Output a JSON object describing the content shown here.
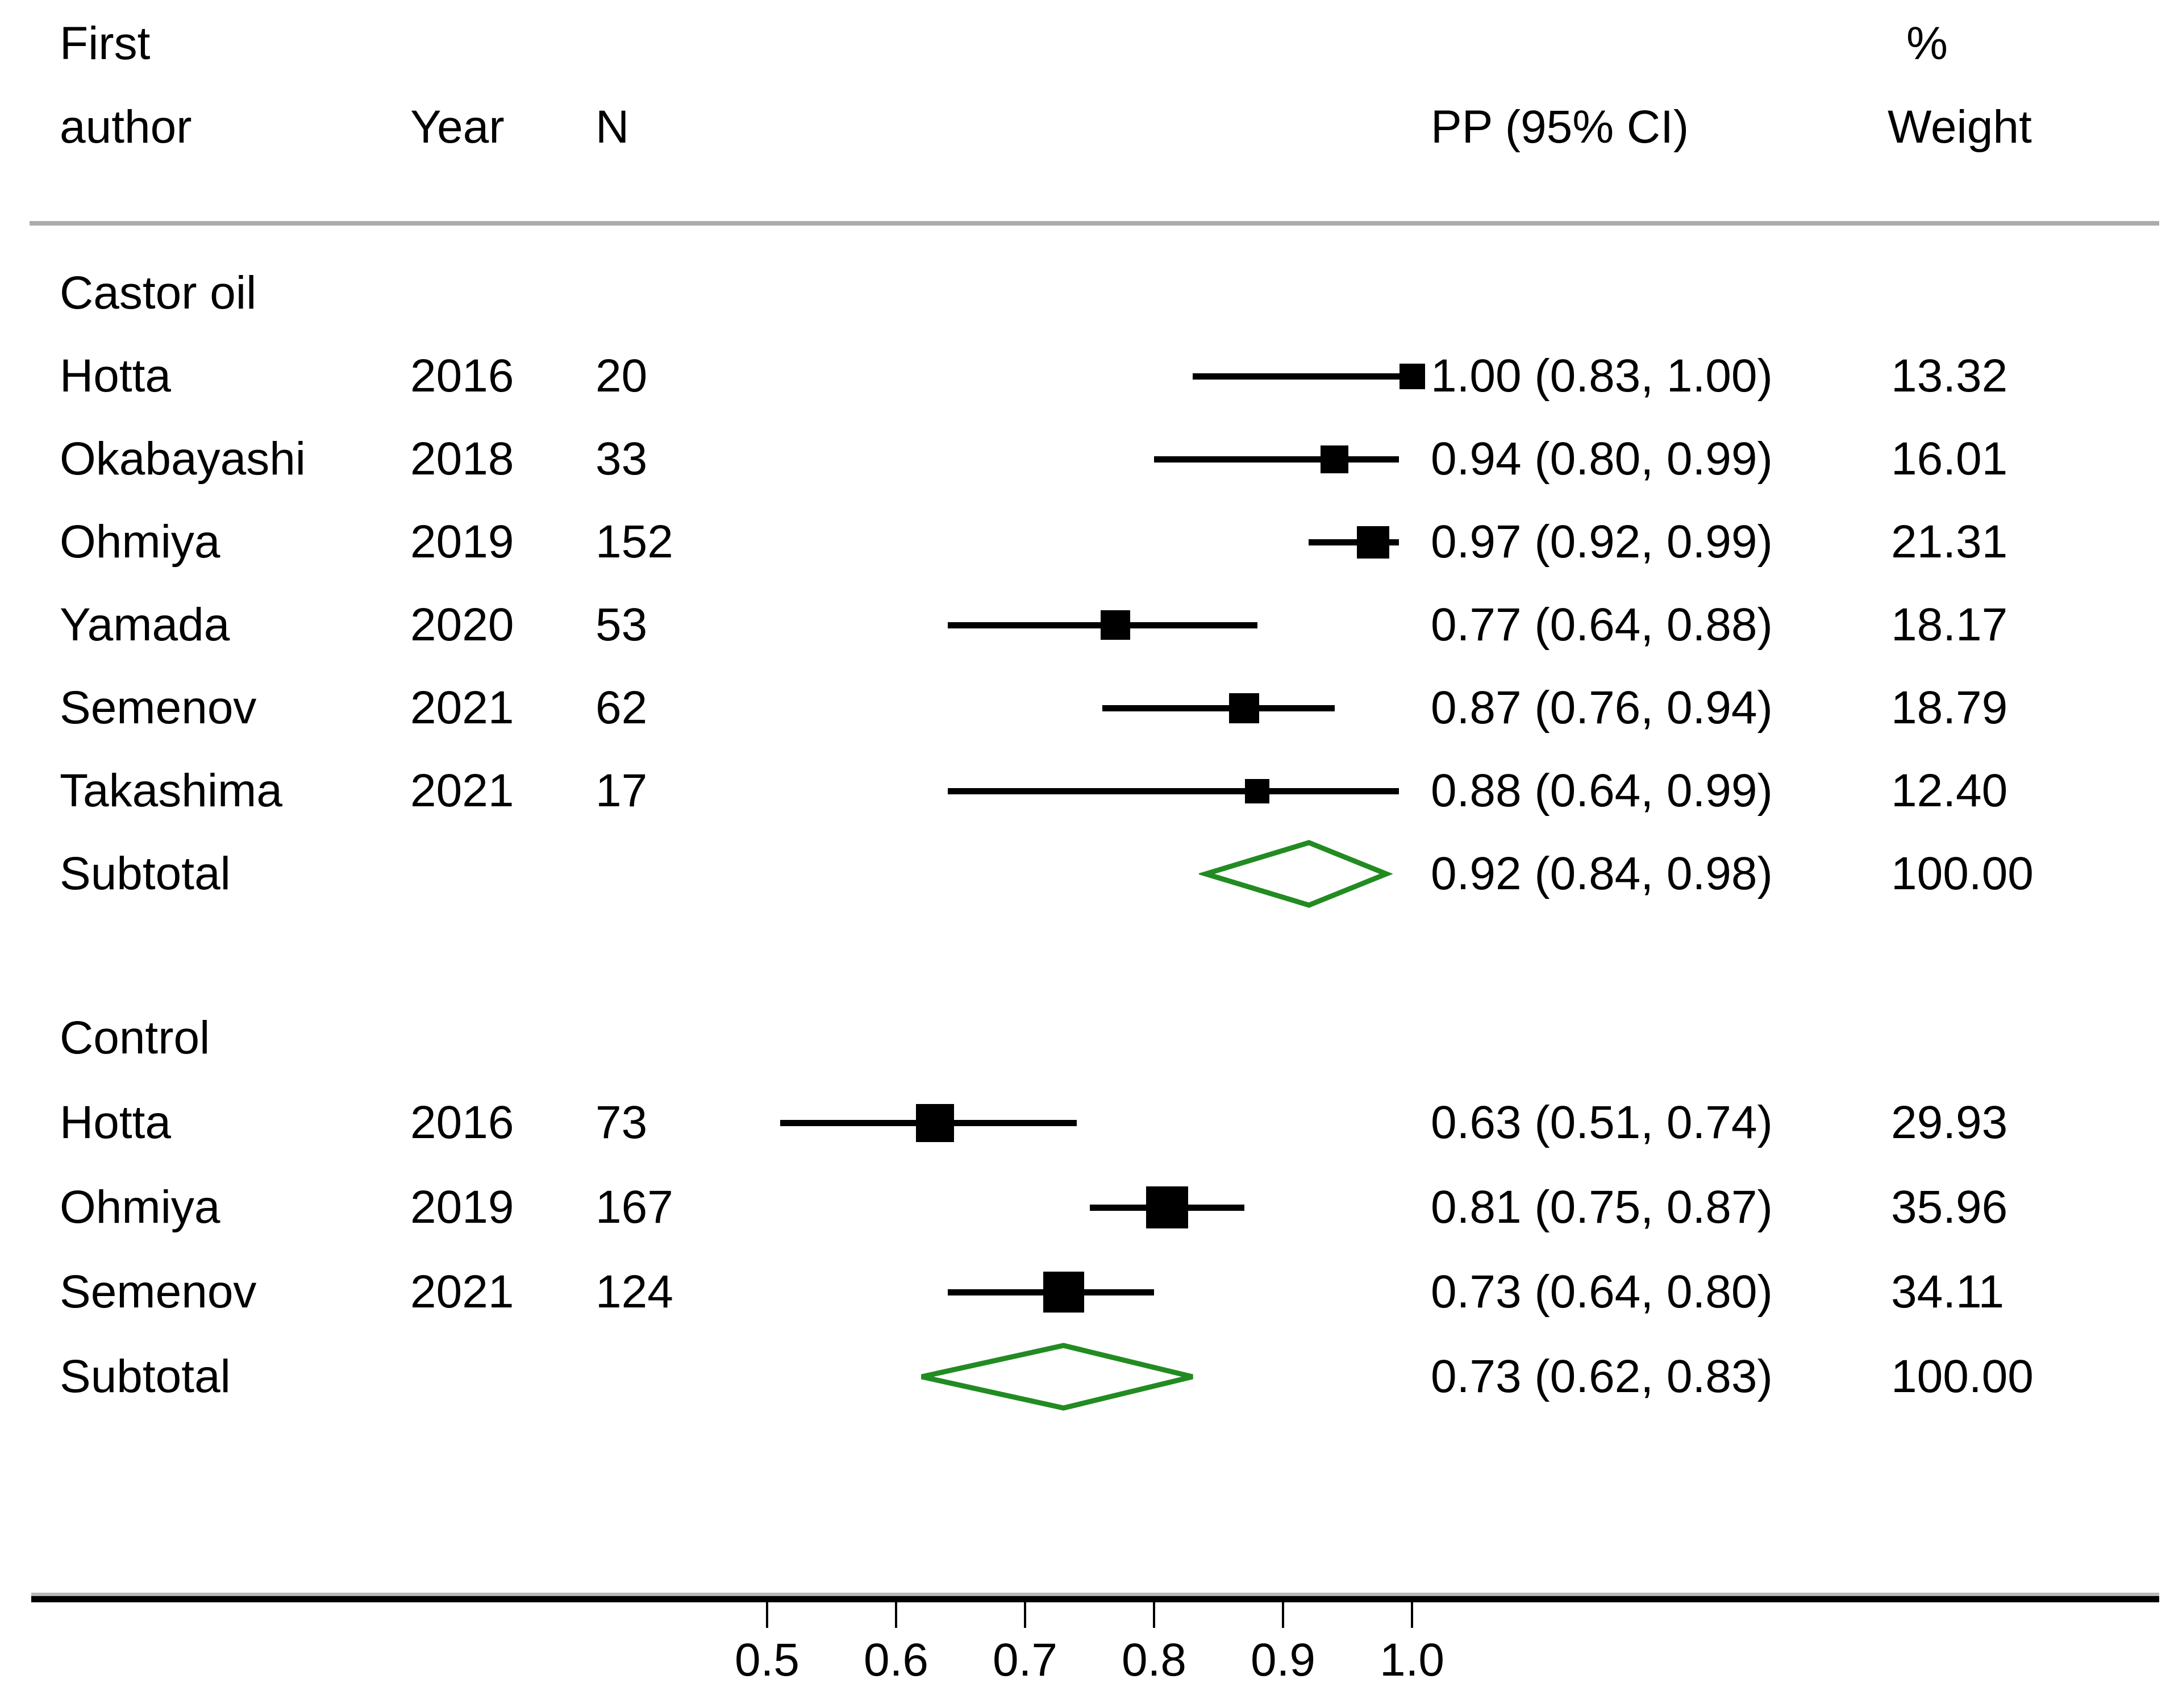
{
  "header": {
    "first": "First",
    "author": "author",
    "year": "Year",
    "n": "N",
    "pp": "PP (95% CI)",
    "percent": "%",
    "weight": "Weight"
  },
  "colors": {
    "text": "#000000",
    "marker": "#000000",
    "ci_line": "#000000",
    "diamond_outline": "#228B22",
    "header_rule": "#ababab",
    "axis_line": "#000000",
    "axis_shadow": "#b8b8b8",
    "background": "#ffffff"
  },
  "chart_data": {
    "type": "forest",
    "title": "",
    "xlabel": "",
    "effect_measure": "PP (95% CI)",
    "x_axis": {
      "min": 0.5,
      "max": 1.0,
      "ticks": [
        0.5,
        0.6,
        0.7,
        0.8,
        0.9,
        1.0
      ],
      "tick_labels": [
        "0.5",
        "0.6",
        "0.7",
        "0.8",
        "0.9",
        "1.0"
      ]
    },
    "legend": "none",
    "grid": false,
    "groups": [
      {
        "label": "Castor oil",
        "studies": [
          {
            "author": "Hotta",
            "year": "2016",
            "n": "20",
            "est": 1.0,
            "lo": 0.83,
            "hi": 1.0,
            "pp_label": "1.00 (0.83, 1.00)",
            "weight": 13.32,
            "weight_label": "13.32"
          },
          {
            "author": "Okabayashi",
            "year": "2018",
            "n": "33",
            "est": 0.94,
            "lo": 0.8,
            "hi": 0.99,
            "pp_label": "0.94 (0.80, 0.99)",
            "weight": 16.01,
            "weight_label": "16.01"
          },
          {
            "author": "Ohmiya",
            "year": "2019",
            "n": "152",
            "est": 0.97,
            "lo": 0.92,
            "hi": 0.99,
            "pp_label": "0.97 (0.92, 0.99)",
            "weight": 21.31,
            "weight_label": "21.31"
          },
          {
            "author": "Yamada",
            "year": "2020",
            "n": "53",
            "est": 0.77,
            "lo": 0.64,
            "hi": 0.88,
            "pp_label": "0.77 (0.64, 0.88)",
            "weight": 18.17,
            "weight_label": "18.17"
          },
          {
            "author": "Semenov",
            "year": "2021",
            "n": "62",
            "est": 0.87,
            "lo": 0.76,
            "hi": 0.94,
            "pp_label": "0.87 (0.76, 0.94)",
            "weight": 18.79,
            "weight_label": "18.79"
          },
          {
            "author": "Takashima",
            "year": "2021",
            "n": "17",
            "est": 0.88,
            "lo": 0.64,
            "hi": 0.99,
            "pp_label": "0.88 (0.64, 0.99)",
            "weight": 12.4,
            "weight_label": "12.40"
          }
        ],
        "subtotal": {
          "label": "Subtotal",
          "est": 0.92,
          "lo": 0.84,
          "hi": 0.98,
          "pp_label": "0.92 (0.84, 0.98)",
          "weight_label": "100.00"
        }
      },
      {
        "label": "Control",
        "studies": [
          {
            "author": "Hotta",
            "year": "2016",
            "n": "73",
            "est": 0.63,
            "lo": 0.51,
            "hi": 0.74,
            "pp_label": "0.63 (0.51, 0.74)",
            "weight": 29.93,
            "weight_label": "29.93"
          },
          {
            "author": "Ohmiya",
            "year": "2019",
            "n": "167",
            "est": 0.81,
            "lo": 0.75,
            "hi": 0.87,
            "pp_label": "0.81 (0.75, 0.87)",
            "weight": 35.96,
            "weight_label": "35.96"
          },
          {
            "author": "Semenov",
            "year": "2021",
            "n": "124",
            "est": 0.73,
            "lo": 0.64,
            "hi": 0.8,
            "pp_label": "0.73 (0.64, 0.80)",
            "weight": 34.11,
            "weight_label": "34.11"
          }
        ],
        "subtotal": {
          "label": "Subtotal",
          "est": 0.73,
          "lo": 0.62,
          "hi": 0.83,
          "pp_label": "0.73 (0.62, 0.83)",
          "weight_label": "100.00"
        }
      }
    ]
  }
}
